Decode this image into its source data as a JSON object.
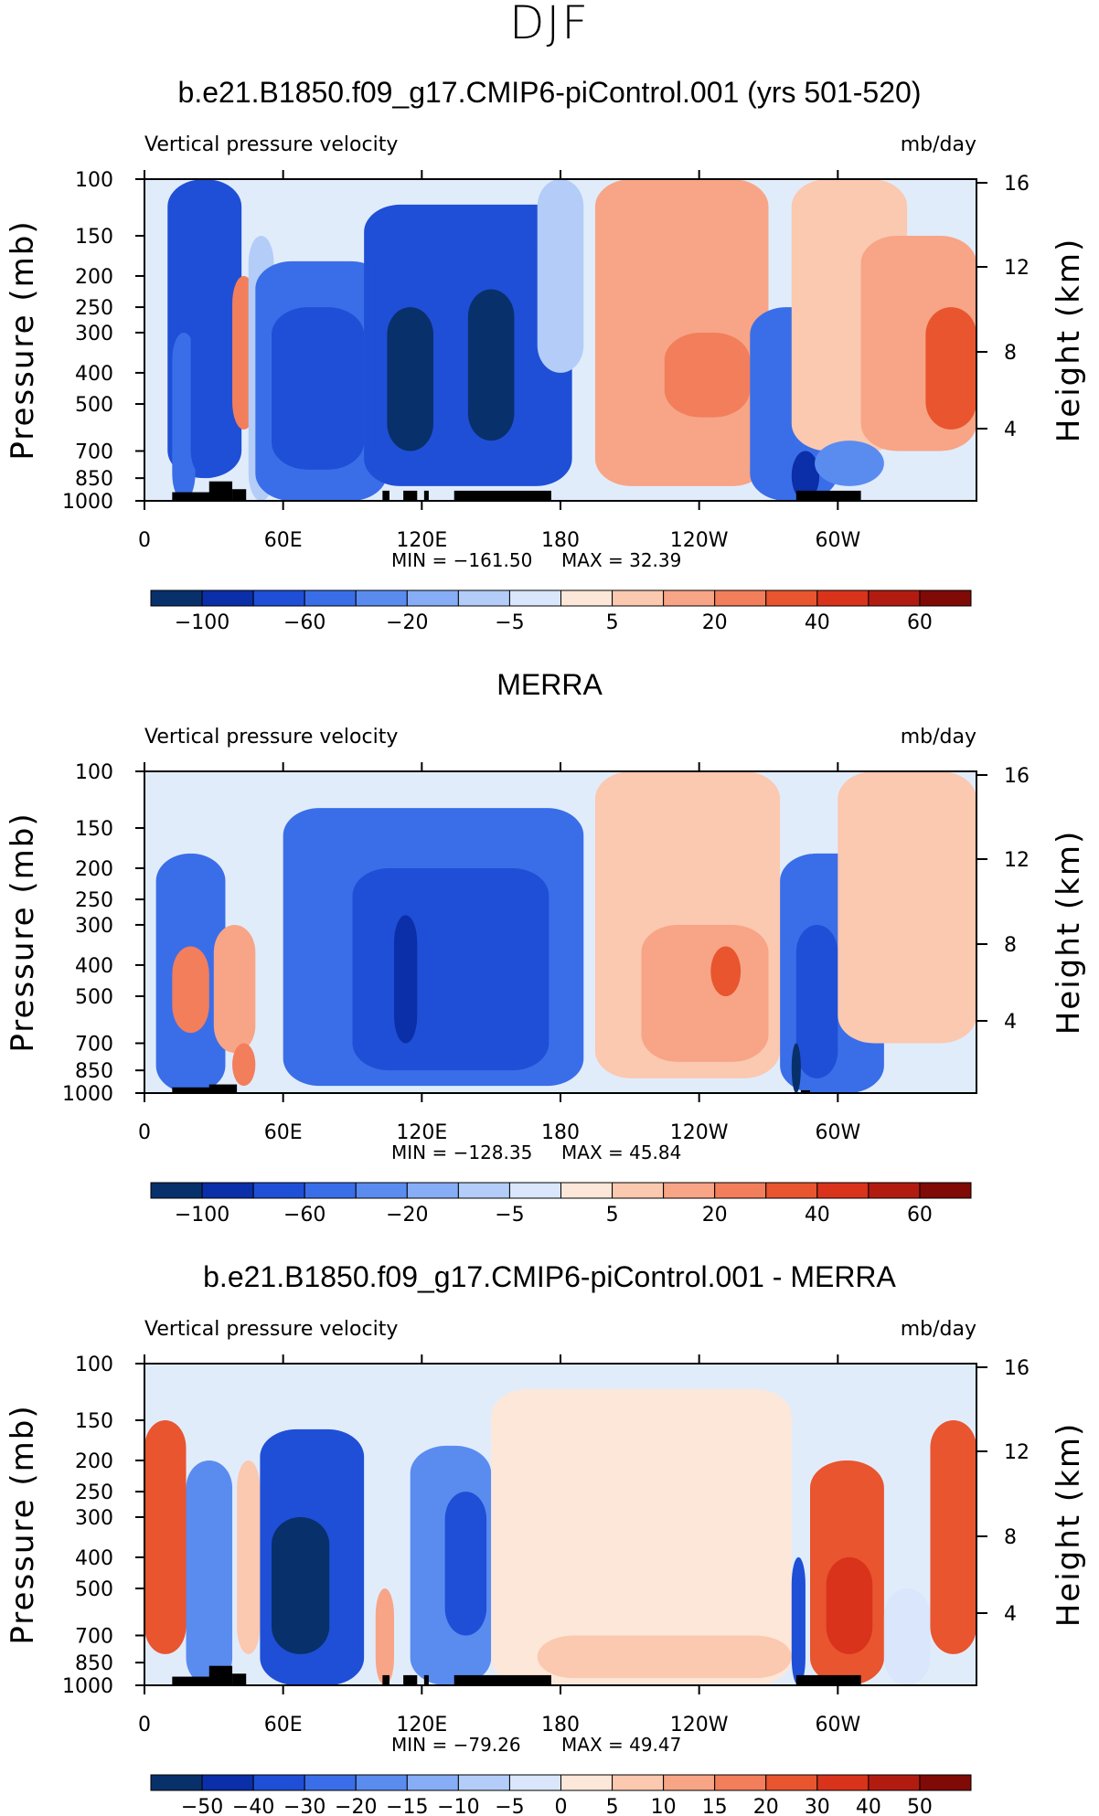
{
  "figure_title": "DJF",
  "colors": {
    "neg": [
      "#08306b",
      "#0a2fa8",
      "#1f4fd6",
      "#3a6ee8",
      "#5a8cf0",
      "#86adf5",
      "#b3cdf8",
      "#d9e6fb"
    ],
    "pos": [
      "#fde7d9",
      "#fbc8b0",
      "#f7a586",
      "#f27e5b",
      "#e8552f",
      "#d9331b",
      "#b21c10",
      "#7f0a06"
    ],
    "ocean": "#e1ecfb",
    "land": "#000000"
  },
  "chart_data": [
    {
      "type": "heatmap",
      "title": "b.e21.B1850.f09_g17.CMIP6-piControl.001 (yrs 501-520)",
      "left_string": "Vertical pressure velocity",
      "right_string": "mb/day",
      "ylabel": "Pressure (mb)",
      "ylabel_right": "Height (km)",
      "yticks": [
        "100",
        "150",
        "200",
        "250",
        "300",
        "400",
        "500",
        "700",
        "850",
        "1000"
      ],
      "ytick_values": [
        100,
        150,
        200,
        250,
        300,
        400,
        500,
        700,
        850,
        1000
      ],
      "yticks_right": [
        "16",
        "12",
        "8",
        "4"
      ],
      "xticks": [
        "0",
        "60E",
        "120E",
        "180",
        "120W",
        "60W"
      ],
      "x_range": [
        0,
        360
      ],
      "min_label": "MIN = −161.50",
      "max_label": "MAX =   32.39",
      "colorbar_labels": [
        "−100",
        "−60",
        "−20",
        "−5",
        "5",
        "20",
        "40",
        "60"
      ],
      "colorbar_levels": 16,
      "features": [
        {
          "x": [
            10,
            42
          ],
          "p": [
            100,
            850
          ],
          "v": -55
        },
        {
          "x": [
            12,
            22
          ],
          "p": [
            300,
            1000
          ],
          "v": -40
        },
        {
          "x": [
            20,
            35
          ],
          "p": [
            150,
            850
          ],
          "v": -70
        },
        {
          "x": [
            38,
            48
          ],
          "p": [
            200,
            600
          ],
          "v": 20
        },
        {
          "x": [
            45,
            56
          ],
          "p": [
            150,
            1000
          ],
          "v": -8
        },
        {
          "x": [
            48,
            105
          ],
          "p": [
            180,
            1000
          ],
          "v": -45
        },
        {
          "x": [
            55,
            95
          ],
          "p": [
            250,
            800
          ],
          "v": -75
        },
        {
          "x": [
            95,
            185
          ],
          "p": [
            120,
            900
          ],
          "v": -55
        },
        {
          "x": [
            100,
            170
          ],
          "p": [
            150,
            850
          ],
          "v": -75
        },
        {
          "x": [
            105,
            125
          ],
          "p": [
            250,
            700
          ],
          "v": -105
        },
        {
          "x": [
            140,
            160
          ],
          "p": [
            220,
            650
          ],
          "v": -110
        },
        {
          "x": [
            170,
            190
          ],
          "p": [
            100,
            400
          ],
          "v": -6
        },
        {
          "x": [
            195,
            270
          ],
          "p": [
            100,
            900
          ],
          "v": 10
        },
        {
          "x": [
            200,
            265
          ],
          "p": [
            250,
            800
          ],
          "v": 18
        },
        {
          "x": [
            225,
            262
          ],
          "p": [
            300,
            550
          ],
          "v": 30
        },
        {
          "x": [
            262,
            300
          ],
          "p": [
            250,
            1000
          ],
          "v": -50
        },
        {
          "x": [
            280,
            292
          ],
          "p": [
            700,
            1000
          ],
          "v": -100
        },
        {
          "x": [
            280,
            330
          ],
          "p": [
            100,
            700
          ],
          "v": 8
        },
        {
          "x": [
            310,
            360
          ],
          "p": [
            150,
            700
          ],
          "v": 18
        },
        {
          "x": [
            338,
            360
          ],
          "p": [
            250,
            600
          ],
          "v": 35
        },
        {
          "x": [
            290,
            320
          ],
          "p": [
            650,
            900
          ],
          "v": -25
        }
      ],
      "land": [
        [
          12,
          34,
          940
        ],
        [
          28,
          38,
          870
        ],
        [
          38,
          44,
          920
        ],
        [
          103,
          106,
          930
        ],
        [
          112,
          118,
          930
        ],
        [
          121,
          123,
          930
        ],
        [
          134,
          176,
          930
        ],
        [
          282,
          310,
          930
        ]
      ]
    },
    {
      "type": "heatmap",
      "title": "MERRA",
      "left_string": "Vertical pressure velocity",
      "right_string": "mb/day",
      "ylabel": "Pressure (mb)",
      "ylabel_right": "Height (km)",
      "yticks": [
        "100",
        "150",
        "200",
        "250",
        "300",
        "400",
        "500",
        "700",
        "850",
        "1000"
      ],
      "ytick_values": [
        100,
        150,
        200,
        250,
        300,
        400,
        500,
        700,
        850,
        1000
      ],
      "yticks_right": [
        "16",
        "12",
        "8",
        "4"
      ],
      "xticks": [
        "0",
        "60E",
        "120E",
        "180",
        "120W",
        "60W"
      ],
      "x_range": [
        0,
        360
      ],
      "min_label": "MIN = −128.35",
      "max_label": "MAX =   45.84",
      "colorbar_labels": [
        "−100",
        "−60",
        "−20",
        "−5",
        "5",
        "20",
        "40",
        "60"
      ],
      "colorbar_levels": 16,
      "features": [
        {
          "x": [
            5,
            35
          ],
          "p": [
            180,
            1000
          ],
          "v": -45
        },
        {
          "x": [
            12,
            28
          ],
          "p": [
            350,
            650
          ],
          "v": 25
        },
        {
          "x": [
            30,
            48
          ],
          "p": [
            300,
            750
          ],
          "v": 12
        },
        {
          "x": [
            38,
            48
          ],
          "p": [
            700,
            950
          ],
          "v": 30
        },
        {
          "x": [
            60,
            190
          ],
          "p": [
            130,
            950
          ],
          "v": -35
        },
        {
          "x": [
            90,
            175
          ],
          "p": [
            200,
            850
          ],
          "v": -60
        },
        {
          "x": [
            108,
            118
          ],
          "p": [
            280,
            700
          ],
          "v": -85
        },
        {
          "x": [
            140,
            150
          ],
          "p": [
            300,
            700
          ],
          "v": -75
        },
        {
          "x": [
            195,
            275
          ],
          "p": [
            100,
            900
          ],
          "v": 8
        },
        {
          "x": [
            215,
            270
          ],
          "p": [
            300,
            800
          ],
          "v": 18
        },
        {
          "x": [
            245,
            258
          ],
          "p": [
            350,
            500
          ],
          "v": 35
        },
        {
          "x": [
            275,
            320
          ],
          "p": [
            180,
            1000
          ],
          "v": -45
        },
        {
          "x": [
            282,
            300
          ],
          "p": [
            300,
            900
          ],
          "v": -70
        },
        {
          "x": [
            280,
            284
          ],
          "p": [
            700,
            1000
          ],
          "v": -110
        },
        {
          "x": [
            330,
            350
          ],
          "p": [
            200,
            500
          ],
          "v": 20
        },
        {
          "x": [
            300,
            360
          ],
          "p": [
            100,
            700
          ],
          "v": 6
        }
      ],
      "land": [
        [
          12,
          36,
          960
        ],
        [
          28,
          40,
          940
        ],
        [
          284,
          288,
          980
        ]
      ]
    },
    {
      "type": "heatmap",
      "title": "b.e21.B1850.f09_g17.CMIP6-piControl.001 - MERRA",
      "left_string": "Vertical pressure velocity",
      "right_string": "mb/day",
      "ylabel": "Pressure (mb)",
      "ylabel_right": "Height (km)",
      "yticks": [
        "100",
        "150",
        "200",
        "250",
        "300",
        "400",
        "500",
        "700",
        "850",
        "1000"
      ],
      "ytick_values": [
        100,
        150,
        200,
        250,
        300,
        400,
        500,
        700,
        850,
        1000
      ],
      "yticks_right": [
        "16",
        "12",
        "8",
        "4"
      ],
      "xticks": [
        "0",
        "60E",
        "120E",
        "180",
        "120W",
        "60W"
      ],
      "x_range": [
        0,
        360
      ],
      "min_label": "MIN = −79.26",
      "max_label": "MAX =   49.47",
      "colorbar_labels": [
        "−50",
        "−40",
        "−30",
        "−20",
        "−15",
        "−10",
        "−5",
        "0",
        "5",
        "10",
        "15",
        "20",
        "30",
        "40",
        "50"
      ],
      "colorbar_levels": 16,
      "features": [
        {
          "x": [
            0,
            18
          ],
          "p": [
            150,
            800
          ],
          "v": 28
        },
        {
          "x": [
            18,
            38
          ],
          "p": [
            200,
            1000
          ],
          "v": -25
        },
        {
          "x": [
            40,
            50
          ],
          "p": [
            200,
            800
          ],
          "v": 10
        },
        {
          "x": [
            50,
            95
          ],
          "p": [
            160,
            1000
          ],
          "v": -35
        },
        {
          "x": [
            55,
            80
          ],
          "p": [
            300,
            800
          ],
          "v": -55
        },
        {
          "x": [
            100,
            108
          ],
          "p": [
            500,
            1000
          ],
          "v": 20
        },
        {
          "x": [
            115,
            150
          ],
          "p": [
            180,
            1000
          ],
          "v": -25
        },
        {
          "x": [
            130,
            148
          ],
          "p": [
            250,
            700
          ],
          "v": -40
        },
        {
          "x": [
            150,
            280
          ],
          "p": [
            120,
            1000
          ],
          "v": 4
        },
        {
          "x": [
            170,
            280
          ],
          "p": [
            700,
            950
          ],
          "v": 8
        },
        {
          "x": [
            280,
            286
          ],
          "p": [
            400,
            1000
          ],
          "v": -40
        },
        {
          "x": [
            288,
            320
          ],
          "p": [
            200,
            1000
          ],
          "v": 28
        },
        {
          "x": [
            295,
            315
          ],
          "p": [
            400,
            800
          ],
          "v": 40
        },
        {
          "x": [
            320,
            340
          ],
          "p": [
            500,
            1000
          ],
          "v": -6
        },
        {
          "x": [
            340,
            360
          ],
          "p": [
            150,
            800
          ],
          "v": 30
        }
      ],
      "land": [
        [
          12,
          34,
          940
        ],
        [
          28,
          38,
          870
        ],
        [
          38,
          44,
          920
        ],
        [
          103,
          106,
          930
        ],
        [
          112,
          118,
          930
        ],
        [
          121,
          123,
          930
        ],
        [
          134,
          176,
          930
        ],
        [
          282,
          310,
          930
        ]
      ]
    }
  ]
}
